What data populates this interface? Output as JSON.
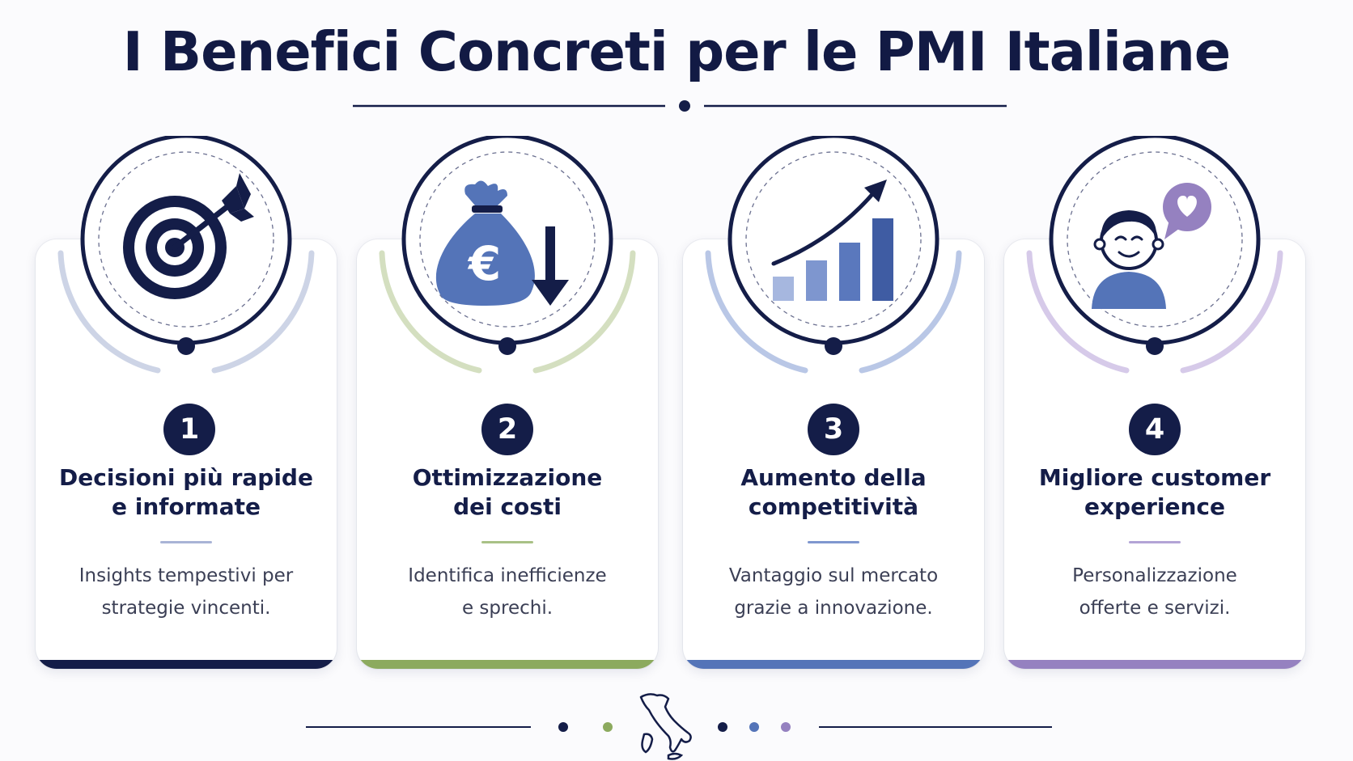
{
  "title": "I Benefici Concreti per le PMI Italiane",
  "colors": {
    "navy": "#141d48",
    "green": "#8caa5e",
    "blue": "#5474b8",
    "purple": "#9581c0"
  },
  "cards": [
    {
      "number": "1",
      "heading_line1": "Decisioni più rapide",
      "heading_line2": "e informate",
      "desc_line1": "Insights tempestivi per",
      "desc_line2": "strategie vincenti.",
      "icon": "target-icon",
      "accent": "#141d48"
    },
    {
      "number": "2",
      "heading_line1": "Ottimizzazione",
      "heading_line2": "dei costi",
      "desc_line1": "Identifica inefficienze",
      "desc_line2": "e sprechi.",
      "icon": "euro-money-bag-down-icon",
      "accent": "#8caa5e"
    },
    {
      "number": "3",
      "heading_line1": "Aumento della",
      "heading_line2": "competitività",
      "desc_line1": "Vantaggio sul mercato",
      "desc_line2": "grazie a innovazione.",
      "icon": "growth-chart-icon",
      "accent": "#5474b8"
    },
    {
      "number": "4",
      "heading_line1": "Migliore customer",
      "heading_line2": "experience",
      "desc_line1": "Personalizzazione",
      "desc_line2": "offerte e servizi.",
      "icon": "happy-customer-heart-icon",
      "accent": "#9581c0"
    }
  ],
  "footer": {
    "icon": "italy-map-icon"
  }
}
